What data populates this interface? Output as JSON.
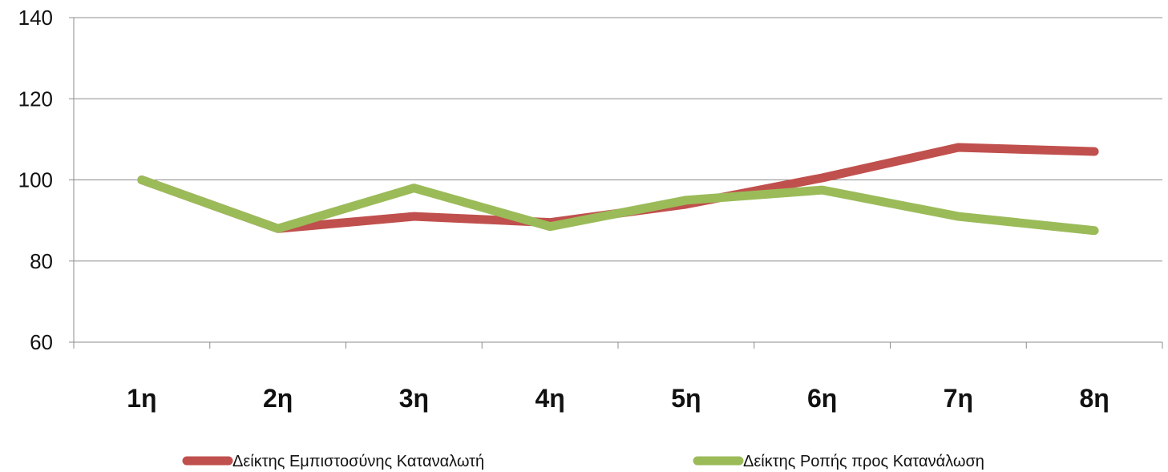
{
  "chart_data": {
    "type": "line",
    "categories": [
      "1η",
      "2η",
      "3η",
      "4η",
      "5η",
      "6η",
      "7η",
      "8η"
    ],
    "ylim": [
      60,
      140
    ],
    "yticks": [
      60,
      80,
      100,
      120,
      140
    ],
    "grid": true,
    "legend_position": "bottom",
    "series": [
      {
        "name": "Δείκτης Εμπιστοσύνης Καταναλωτή",
        "color": "#c0504d",
        "values": [
          100,
          88,
          91,
          89.5,
          94,
          100.5,
          108,
          107
        ]
      },
      {
        "name": "Δείκτης Ροπής προς Κατανάλωση",
        "color": "#9bbb59",
        "values": [
          100,
          88,
          98,
          88.5,
          95,
          97.5,
          91,
          87.5
        ]
      }
    ]
  }
}
